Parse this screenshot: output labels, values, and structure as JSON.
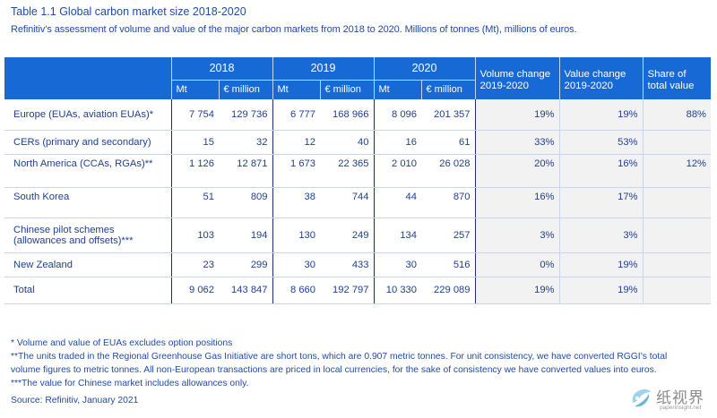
{
  "title": "Table 1.1 Global carbon market size 2018-2020",
  "subtitle": "Refinitiv’s assessment of volume and value of the major carbon markets from 2018 to 2020. Millions of tonnes (Mt), millions of euros.",
  "headers": {
    "years": [
      "2018",
      "2019",
      "2020"
    ],
    "unit_mt": "Mt",
    "unit_eur": "€ million",
    "volume_change_1": "Volume change",
    "volume_change_2": "2019-2020",
    "value_change_1": "Value change",
    "value_change_2": "2019-2020",
    "share_1": "Share of",
    "share_2": "total value"
  },
  "rows": [
    {
      "label": "Europe (EUAs, aviation EUAs)*",
      "mt2018": "7 754",
      "eur2018": "129 736",
      "mt2019": "6 777",
      "eur2019": "168 966",
      "mt2020": "8 096",
      "eur2020": "201 357",
      "vol_change": "19%",
      "val_change": "19%",
      "share": "88%"
    },
    {
      "label": "CERs (primary and secondary)",
      "mt2018": "15",
      "eur2018": "32",
      "mt2019": "12",
      "eur2019": "40",
      "mt2020": "16",
      "eur2020": "61",
      "vol_change": "33%",
      "val_change": "53%",
      "share": ""
    },
    {
      "label": "North America (CCAs, RGAs)**",
      "mt2018": "1 126",
      "eur2018": "12 871",
      "mt2019": "1 673",
      "eur2019": "22 365",
      "mt2020": "2 010",
      "eur2020": "26 028",
      "vol_change": "20%",
      "val_change": "16%",
      "share": "12%"
    },
    {
      "label": "South Korea",
      "mt2018": "51",
      "eur2018": "809",
      "mt2019": "38",
      "eur2019": "744",
      "mt2020": "44",
      "eur2020": "870",
      "vol_change": "16%",
      "val_change": "17%",
      "share": ""
    },
    {
      "label": "Chinese pilot schemes (allowances and offsets)***",
      "mt2018": "103",
      "eur2018": "194",
      "mt2019": "130",
      "eur2019": "249",
      "mt2020": "134",
      "eur2020": "257",
      "vol_change": "3%",
      "val_change": "3%",
      "share": ""
    },
    {
      "label": "New Zealand",
      "mt2018": "23",
      "eur2018": "299",
      "mt2019": "30",
      "eur2019": "433",
      "mt2020": "30",
      "eur2020": "516",
      "vol_change": "0%",
      "val_change": "19%",
      "share": ""
    },
    {
      "label": "Total",
      "mt2018": "9 062",
      "eur2018": "143 847",
      "mt2019": "8 660",
      "eur2019": "192 797",
      "mt2020": "10 330",
      "eur2020": "229 089",
      "vol_change": "19%",
      "val_change": "19%",
      "share": ""
    }
  ],
  "notes": [
    "* Volume and value of EUAs excludes option positions",
    "**The units traded in the Regional Greenhouse Gas Initiative are short tons, which are 0.907 metric tonnes. For unit consistency, we have converted RGGI’s total",
    "volume figures to metric tonnes. All non-European transactions are priced in local currencies, for the sake of consistency we have converted values into euros.",
    "***The value for Chinese market includes allowances only."
  ],
  "source": "Source: Refinitiv, January 2021",
  "watermark": {
    "text": "纸视界",
    "url": "paperinsight.net",
    "icon": "paperinsight-logo-icon"
  },
  "colors": {
    "header_bg": "#1769d6",
    "text": "#1f3f8f",
    "change_bg": "#f2f2f2"
  }
}
